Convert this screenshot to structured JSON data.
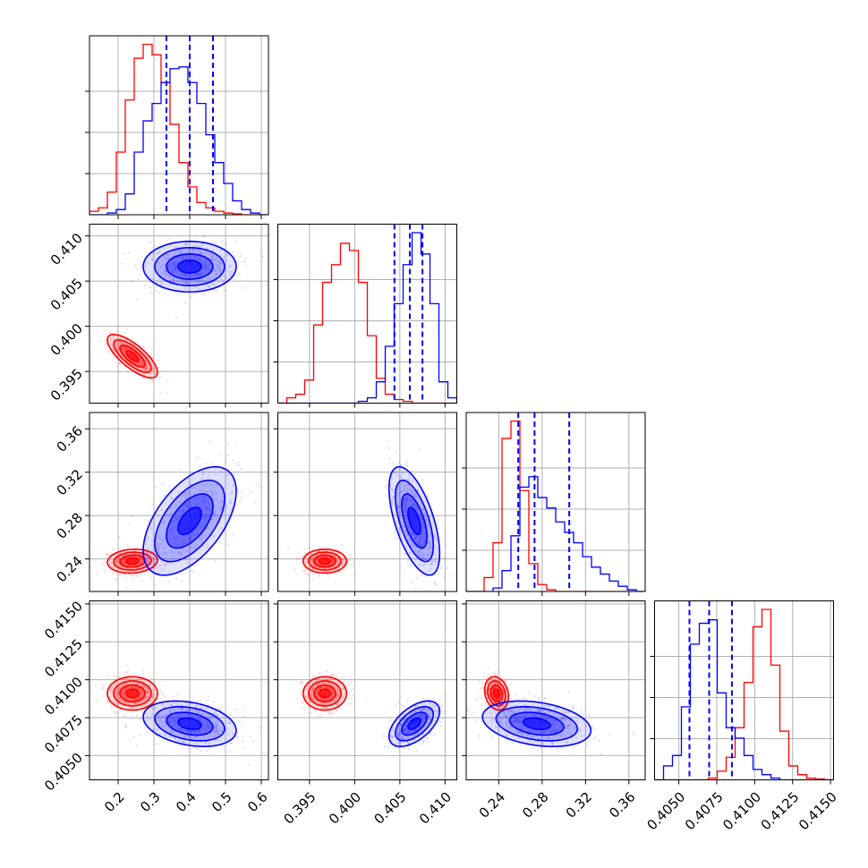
{
  "chart_data": {
    "type": "corner",
    "title": "",
    "grid": true,
    "colors": {
      "red_series": "#ff0000",
      "blue_series": "#0000ff"
    },
    "params": [
      {
        "range": [
          0.12,
          0.62
        ],
        "ticks": [
          {
            "value": 0.2,
            "label": "0.2"
          },
          {
            "value": 0.3,
            "label": "0.3"
          },
          {
            "value": 0.4,
            "label": "0.4"
          },
          {
            "value": 0.5,
            "label": "0.5"
          },
          {
            "value": 0.6,
            "label": "0.6"
          }
        ]
      },
      {
        "range": [
          0.3915,
          0.4113
        ],
        "ticks": [
          {
            "value": 0.395,
            "label": "0.395"
          },
          {
            "value": 0.4,
            "label": "0.400"
          },
          {
            "value": 0.405,
            "label": "0.405"
          },
          {
            "value": 0.41,
            "label": "0.410"
          }
        ]
      },
      {
        "range": [
          0.21,
          0.375
        ],
        "ticks": [
          {
            "value": 0.24,
            "label": "0.24"
          },
          {
            "value": 0.28,
            "label": "0.28"
          },
          {
            "value": 0.32,
            "label": "0.32"
          },
          {
            "value": 0.36,
            "label": "0.36"
          }
        ]
      },
      {
        "range": [
          0.4034,
          0.4152
        ],
        "ticks": [
          {
            "value": 0.405,
            "label": "0.4050"
          },
          {
            "value": 0.4075,
            "label": "0.4075"
          },
          {
            "value": 0.41,
            "label": "0.4100"
          },
          {
            "value": 0.4125,
            "label": "0.4125"
          },
          {
            "value": 0.415,
            "label": "0.4150"
          }
        ]
      }
    ],
    "series": [
      {
        "color": "#ff0000",
        "means": [
          0.24,
          0.3967,
          0.238,
          0.4091
        ],
        "sigmas": [
          0.035,
          0.0012,
          0.0055,
          0.00055
        ],
        "correlations": {
          "0-1": -0.75,
          "0-2": 0.1,
          "0-3": 0.0,
          "1-2": 0.0,
          "1-3": 0.0,
          "2-3": -0.2
        },
        "histograms": [
          [
            0.2,
            0.4,
            1.3,
            3.6,
            6.6,
            9.0,
            9.8,
            9.2,
            7.6,
            5.2,
            3.0,
            1.6,
            0.7,
            0.4,
            0.2,
            0.1,
            0.05,
            0,
            0,
            0
          ],
          [
            0,
            0.3,
            0.5,
            1.3,
            4.4,
            6.8,
            7.8,
            9.0,
            8.6,
            6.8,
            3.8,
            1.4,
            0.5,
            0.2,
            0.1,
            0,
            0,
            0,
            0,
            0
          ],
          [
            0,
            0,
            0.8,
            2.8,
            8.8,
            9.8,
            5.8,
            1.6,
            0.4,
            0.1,
            0,
            0,
            0,
            0,
            0,
            0,
            0,
            0,
            0,
            0
          ],
          [
            0,
            0,
            0,
            0,
            0,
            0,
            0.1,
            0.5,
            1.3,
            3.0,
            5.6,
            8.8,
            9.8,
            6.6,
            2.8,
            0.8,
            0.3,
            0.1,
            0.05,
            0
          ]
        ]
      },
      {
        "color": "#0000ff",
        "means": [
          0.4,
          0.4066,
          0.275,
          0.4071
        ],
        "sigmas": [
          0.065,
          0.0014,
          0.025,
          0.00075
        ],
        "correlations": {
          "0-1": 0.0,
          "0-2": 0.55,
          "0-3": -0.3,
          "1-2": -0.6,
          "1-3": 0.55,
          "2-3": -0.3
        },
        "quantiles": [
          [
            0.335,
            0.4,
            0.465
          ],
          [
            0.4044,
            0.4061,
            0.4075
          ],
          [
            0.258,
            0.273,
            0.305
          ],
          [
            0.4057,
            0.407,
            0.4085
          ]
        ],
        "histograms": [
          [
            0,
            0,
            0.1,
            0.3,
            1.2,
            3.6,
            5.4,
            6.4,
            7.6,
            8.4,
            8.5,
            7.6,
            6.4,
            4.6,
            3.0,
            1.8,
            0.8,
            0.3,
            0.1,
            0
          ],
          [
            0,
            0,
            0,
            0,
            0,
            0,
            0,
            0,
            0,
            0.1,
            0.3,
            1.2,
            3.2,
            5.6,
            7.8,
            9.6,
            8.4,
            5.6,
            1.2,
            0.3
          ],
          [
            0,
            0,
            0,
            0.2,
            1.2,
            3.2,
            6.0,
            6.6,
            5.4,
            4.8,
            4.0,
            3.4,
            2.8,
            2.0,
            1.4,
            1.0,
            0.6,
            0.3,
            0.1,
            0
          ],
          [
            0,
            0.8,
            1.4,
            4.2,
            7.8,
            9.0,
            9.2,
            5.0,
            3.0,
            2.4,
            1.4,
            0.6,
            0.3,
            0.1,
            0,
            0,
            0,
            0,
            0,
            0
          ]
        ]
      }
    ]
  }
}
